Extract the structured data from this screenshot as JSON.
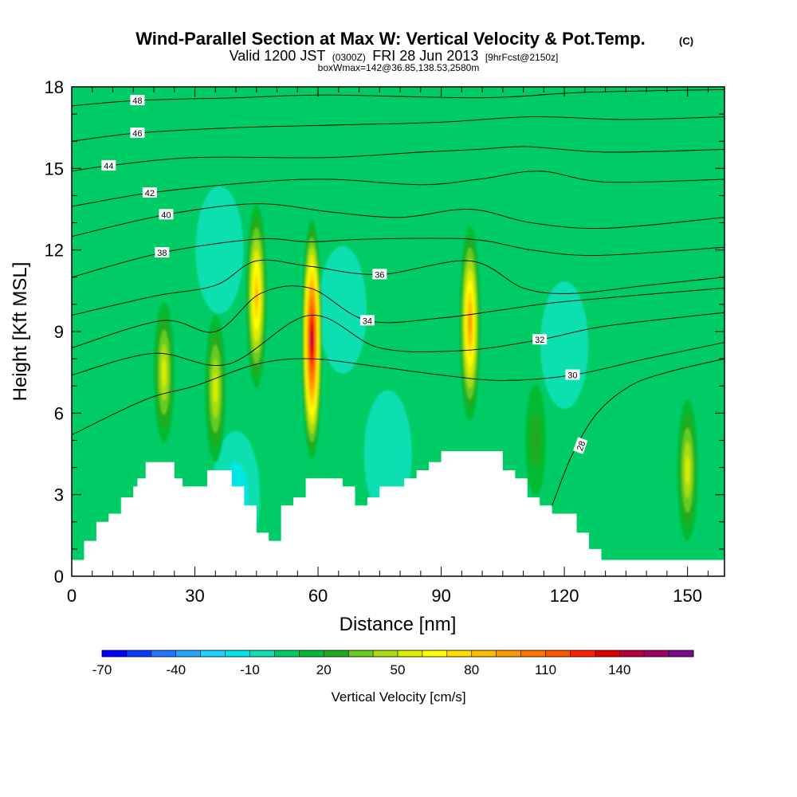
{
  "titles": {
    "main": "Wind-Parallel Section at Max W: Vertical Velocity & Pot.Temp.",
    "copyright": "(C)",
    "valid_prefix": "Valid 1200 JST",
    "valid_z": "(0300Z)",
    "valid_date": "FRI 28 Jun 2013",
    "forecast": "[9hrFcst@2150z]",
    "boxwmax": "boxWmax=142@36.85,138.53,2580m"
  },
  "chart_data": {
    "type": "heatmap",
    "xlabel": "Distance [nm]",
    "ylabel": "Height [Kft MSL]",
    "xlim": [
      0,
      159
    ],
    "ylim": [
      0,
      18
    ],
    "x_ticks": [
      0,
      30,
      60,
      90,
      120,
      150
    ],
    "y_ticks": [
      0,
      3,
      6,
      9,
      12,
      15,
      18
    ],
    "colorbar": {
      "title": "Vertical Velocity [cm/s]",
      "min": -70,
      "max": 150,
      "step": 10,
      "tick_labels": [
        -70,
        -40,
        -10,
        20,
        50,
        80,
        110,
        140
      ],
      "colors": [
        "#0000ff",
        "#0a3cff",
        "#1f78ff",
        "#22a6ff",
        "#1fd2ff",
        "#00e6e6",
        "#10e0b0",
        "#00cc66",
        "#00bb33",
        "#22aa22",
        "#66cc22",
        "#aadd11",
        "#ddee00",
        "#ffff00",
        "#ffdd00",
        "#ffbb00",
        "#ff9900",
        "#ff7700",
        "#ff5500",
        "#ff2200",
        "#e00000",
        "#b4003c",
        "#a00064",
        "#7a0a8c"
      ]
    },
    "background_w": 5,
    "updrafts": [
      {
        "x": 22.5,
        "z": 7.5,
        "w": 50
      },
      {
        "x": 35.0,
        "z": 6.9,
        "w": 55
      },
      {
        "x": 45.0,
        "z": 10.3,
        "w": 85
      },
      {
        "x": 58.5,
        "z": 8.7,
        "w": 142
      },
      {
        "x": 97.0,
        "z": 9.3,
        "w": 95
      },
      {
        "x": 150.0,
        "z": 3.9,
        "w": 50
      },
      {
        "x": 113.0,
        "z": 5.0,
        "w": 25
      }
    ],
    "downdrafts": [
      {
        "x": 40.0,
        "z": 3.0,
        "w": -15
      },
      {
        "x": 66.0,
        "z": 9.8,
        "w": -10
      },
      {
        "x": 77.0,
        "z": 4.5,
        "w": -10
      },
      {
        "x": 36.0,
        "z": 12.0,
        "w": -10
      },
      {
        "x": 120.0,
        "z": 8.5,
        "w": -10
      }
    ],
    "terrain": {
      "x": [
        0,
        3,
        6,
        9,
        12,
        15,
        16,
        18,
        21,
        24,
        25,
        27,
        30,
        31,
        33,
        36,
        39,
        42,
        45,
        48,
        51,
        54,
        57,
        60,
        63,
        66,
        69,
        72,
        75,
        78,
        81,
        84,
        87,
        90,
        93,
        96,
        99,
        102,
        105,
        108,
        111,
        114,
        117,
        120,
        123,
        126,
        129,
        132,
        135,
        138,
        141,
        144,
        147,
        150,
        153,
        156,
        159
      ],
      "z": [
        0.6,
        1.3,
        2.0,
        2.3,
        2.9,
        3.3,
        3.6,
        4.2,
        4.2,
        4.2,
        3.6,
        3.3,
        3.3,
        3.3,
        3.9,
        3.9,
        3.3,
        2.6,
        1.6,
        1.3,
        2.6,
        2.9,
        3.6,
        3.6,
        3.6,
        3.3,
        2.6,
        2.9,
        3.3,
        3.3,
        3.6,
        3.9,
        4.2,
        4.6,
        4.6,
        4.6,
        4.6,
        4.6,
        3.9,
        3.6,
        2.9,
        2.6,
        2.3,
        2.3,
        1.6,
        1.0,
        0.6,
        0.6,
        0.6,
        0.6,
        0.6,
        0.6,
        0.6,
        0.6,
        0.6,
        0.6,
        0.6
      ]
    },
    "theta_contours": [
      {
        "value": 28,
        "label": "28",
        "label_x": 124,
        "label_z": 4.8,
        "label_angle": -70,
        "path": [
          [
            108,
            0.5
          ],
          [
            114,
            1.5
          ],
          [
            118,
            3.0
          ],
          [
            122,
            4.5
          ],
          [
            128,
            6.0
          ],
          [
            136,
            7.0
          ],
          [
            145,
            7.5
          ],
          [
            159,
            8.0
          ]
        ]
      },
      {
        "value": 30,
        "label": "30",
        "label_x": 122,
        "label_z": 7.4,
        "label_angle": 0,
        "path": [
          [
            0,
            5.2
          ],
          [
            18,
            6.5
          ],
          [
            30,
            7.0
          ],
          [
            45,
            7.8
          ],
          [
            58,
            8.0
          ],
          [
            75,
            7.7
          ],
          [
            90,
            7.4
          ],
          [
            105,
            7.2
          ],
          [
            122,
            7.4
          ],
          [
            140,
            8.0
          ],
          [
            159,
            8.6
          ]
        ]
      },
      {
        "value": 32,
        "label": "32",
        "label_x": 114,
        "label_z": 8.7,
        "label_angle": 0,
        "path": [
          [
            0,
            7.4
          ],
          [
            20,
            8.2
          ],
          [
            38,
            7.8
          ],
          [
            58,
            9.6
          ],
          [
            75,
            8.4
          ],
          [
            95,
            8.3
          ],
          [
            114,
            8.7
          ],
          [
            130,
            9.2
          ],
          [
            159,
            9.7
          ]
        ]
      },
      {
        "value": 34,
        "label": "34",
        "label_x": 72,
        "label_z": 9.4,
        "label_angle": 0,
        "path": [
          [
            0,
            8.4
          ],
          [
            22,
            9.4
          ],
          [
            35,
            9.0
          ],
          [
            46,
            10.4
          ],
          [
            58,
            10.6
          ],
          [
            72,
            9.4
          ],
          [
            90,
            9.5
          ],
          [
            105,
            9.8
          ],
          [
            120,
            10.1
          ],
          [
            159,
            10.6
          ]
        ]
      },
      {
        "value": 36,
        "label": "36",
        "label_x": 75,
        "label_z": 11.1,
        "label_angle": 0,
        "path": [
          [
            0,
            9.6
          ],
          [
            20,
            10.3
          ],
          [
            35,
            10.7
          ],
          [
            45,
            11.6
          ],
          [
            58,
            11.4
          ],
          [
            75,
            11.1
          ],
          [
            97,
            11.6
          ],
          [
            110,
            10.6
          ],
          [
            122,
            10.4
          ],
          [
            140,
            10.7
          ],
          [
            159,
            11.0
          ]
        ]
      },
      {
        "value": 38,
        "label": "38",
        "label_x": 22,
        "label_z": 11.9,
        "label_angle": 0,
        "path": [
          [
            0,
            11.0
          ],
          [
            22,
            11.9
          ],
          [
            45,
            12.4
          ],
          [
            58,
            12.3
          ],
          [
            72,
            12.4
          ],
          [
            97,
            12.4
          ],
          [
            112,
            12.0
          ],
          [
            128,
            11.8
          ],
          [
            159,
            12.1
          ]
        ]
      },
      {
        "value": 40,
        "label": "40",
        "label_x": 23,
        "label_z": 13.3,
        "label_angle": 0,
        "path": [
          [
            0,
            12.5
          ],
          [
            23,
            13.3
          ],
          [
            45,
            13.7
          ],
          [
            63,
            13.4
          ],
          [
            80,
            13.2
          ],
          [
            97,
            13.5
          ],
          [
            112,
            13.0
          ],
          [
            130,
            12.8
          ],
          [
            159,
            13.2
          ]
        ]
      },
      {
        "value": 42,
        "label": "42",
        "label_x": 19,
        "label_z": 14.1,
        "label_angle": 0,
        "path": [
          [
            0,
            13.6
          ],
          [
            19,
            14.1
          ],
          [
            45,
            14.5
          ],
          [
            63,
            14.6
          ],
          [
            85,
            14.4
          ],
          [
            99,
            14.6
          ],
          [
            114,
            14.9
          ],
          [
            130,
            14.5
          ],
          [
            159,
            14.6
          ]
        ]
      },
      {
        "value": 44,
        "label": "44",
        "label_x": 9,
        "label_z": 15.1,
        "label_angle": 0,
        "path": [
          [
            0,
            14.9
          ],
          [
            9,
            15.1
          ],
          [
            30,
            15.4
          ],
          [
            62,
            15.4
          ],
          [
            85,
            15.6
          ],
          [
            99,
            15.7
          ],
          [
            111,
            15.8
          ],
          [
            130,
            15.6
          ],
          [
            159,
            15.7
          ]
        ]
      },
      {
        "value": 46,
        "label": "46",
        "label_x": 16,
        "label_z": 16.3,
        "label_angle": 0,
        "path": [
          [
            0,
            16.0
          ],
          [
            16,
            16.3
          ],
          [
            40,
            16.5
          ],
          [
            65,
            16.6
          ],
          [
            90,
            16.7
          ],
          [
            112,
            16.9
          ],
          [
            135,
            16.8
          ],
          [
            159,
            16.9
          ]
        ]
      },
      {
        "value": 48,
        "label": "48",
        "label_x": 16,
        "label_z": 17.5,
        "label_angle": 0,
        "path": [
          [
            0,
            17.3
          ],
          [
            16,
            17.5
          ],
          [
            40,
            17.6
          ],
          [
            62,
            17.7
          ],
          [
            100,
            17.6
          ],
          [
            125,
            17.8
          ],
          [
            159,
            17.9
          ]
        ]
      }
    ]
  }
}
